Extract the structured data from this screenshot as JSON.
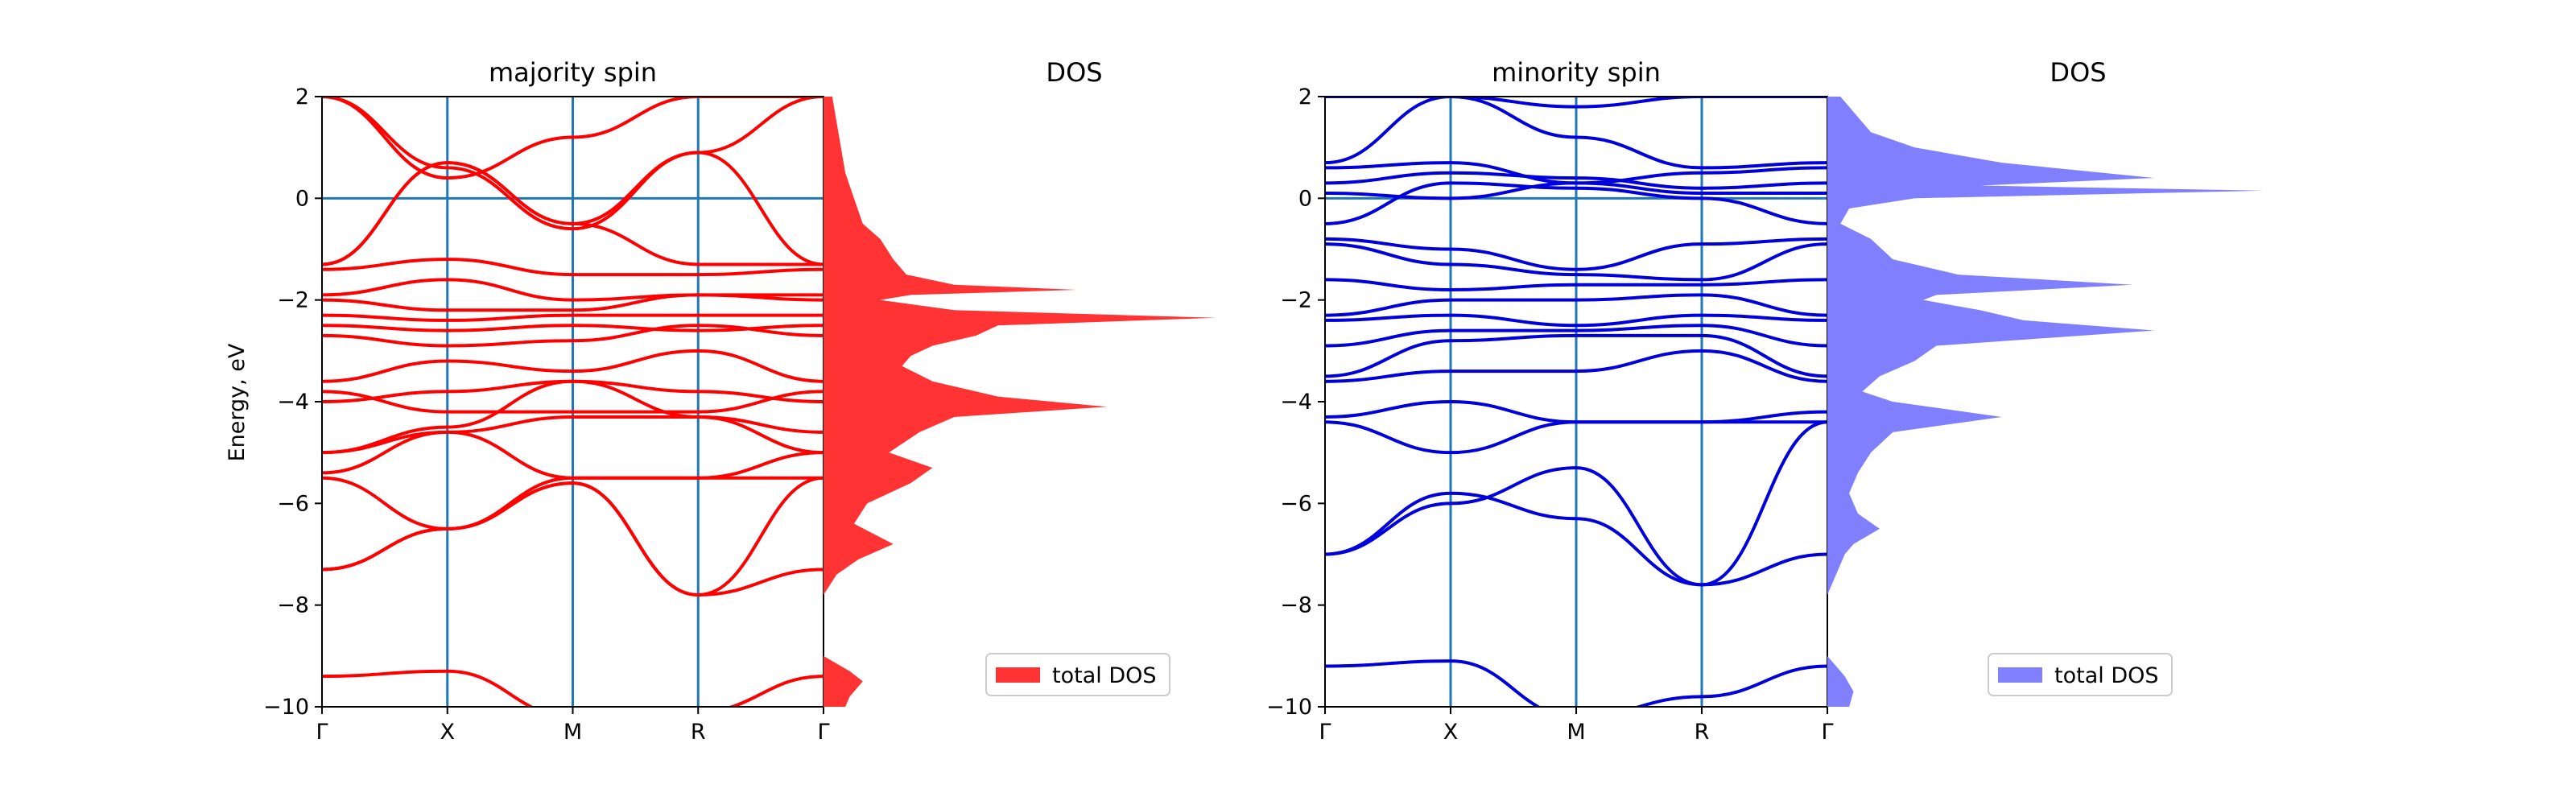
{
  "figure": {
    "ylabel": "Energy, eV",
    "colors": {
      "majority": "#ff0000",
      "majority_dos": "#ff3333",
      "minority": "#0000dd",
      "minority_dos": "#8080ff",
      "kpath_line": "#1f77b4"
    }
  },
  "chart_data": [
    {
      "type": "line",
      "title": "majority spin",
      "ylabel": "Energy, eV",
      "ylim": [
        -10,
        2
      ],
      "xticks": [
        "Γ",
        "X",
        "M",
        "R",
        "Γ"
      ],
      "yticks": [
        2,
        0,
        -2,
        -4,
        -6,
        -8,
        -10
      ],
      "fermi_level": 0,
      "bands": [
        {
          "y": [
            -9.4,
            -9.3,
            -10.2,
            -10.1,
            -9.4
          ]
        },
        {
          "y": [
            -7.3,
            -6.5,
            -5.6,
            -7.8,
            -7.3
          ]
        },
        {
          "y": [
            -7.3,
            -6.5,
            -5.6,
            -7.8,
            -5.5
          ]
        },
        {
          "y": [
            -5.5,
            -6.5,
            -5.5,
            -5.5,
            -5.5
          ]
        },
        {
          "y": [
            -5.4,
            -4.6,
            -5.5,
            -5.5,
            -5.0
          ]
        },
        {
          "y": [
            -5.0,
            -4.6,
            -4.3,
            -4.3,
            -4.6
          ]
        },
        {
          "y": [
            -5.0,
            -4.5,
            -3.6,
            -4.3,
            -5.0
          ]
        },
        {
          "y": [
            -4.0,
            -3.8,
            -3.6,
            -3.8,
            -4.0
          ]
        },
        {
          "y": [
            -3.8,
            -4.2,
            -4.2,
            -4.2,
            -3.8
          ]
        },
        {
          "y": [
            -3.6,
            -3.2,
            -3.4,
            -3.0,
            -3.6
          ]
        },
        {
          "y": [
            -2.7,
            -2.9,
            -2.8,
            -2.5,
            -2.7
          ]
        },
        {
          "y": [
            -2.5,
            -2.6,
            -2.5,
            -2.6,
            -2.5
          ]
        },
        {
          "y": [
            -2.3,
            -2.4,
            -2.3,
            -2.3,
            -2.3
          ]
        },
        {
          "y": [
            -2.0,
            -2.2,
            -2.2,
            -1.9,
            -2.0
          ]
        },
        {
          "y": [
            -1.9,
            -1.6,
            -2.0,
            -1.9,
            -1.9
          ]
        },
        {
          "y": [
            -1.4,
            -1.2,
            -1.5,
            -1.5,
            -1.4
          ]
        },
        {
          "y": [
            -1.3,
            0.7,
            -0.5,
            -1.3,
            -1.3
          ]
        },
        {
          "y": [
            -1.3,
            0.7,
            -0.5,
            0.9,
            -1.3
          ]
        },
        {
          "y": [
            2.0,
            0.6,
            -0.6,
            0.9,
            2.0
          ]
        },
        {
          "y": [
            2.0,
            0.4,
            1.2,
            2.0,
            2.0
          ]
        }
      ],
      "dos": {
        "label": "total DOS",
        "energy": [
          2.0,
          1.5,
          1.0,
          0.5,
          0.0,
          -0.5,
          -0.8,
          -1.2,
          -1.5,
          -1.7,
          -1.8,
          -1.9,
          -2.0,
          -2.2,
          -2.35,
          -2.5,
          -2.7,
          -2.9,
          -3.1,
          -3.3,
          -3.6,
          -3.9,
          -4.1,
          -4.3,
          -4.6,
          -5.0,
          -5.3,
          -5.6,
          -6.0,
          -6.4,
          -6.8,
          -7.1,
          -7.4,
          -7.8,
          -8.2,
          -8.6,
          -9.0,
          -9.3,
          -9.5,
          -9.8,
          -10.0
        ],
        "values": [
          0.2,
          0.3,
          0.4,
          0.5,
          0.7,
          0.9,
          1.3,
          1.6,
          1.9,
          3.0,
          5.8,
          2.0,
          1.3,
          3.0,
          9.0,
          4.0,
          3.5,
          2.5,
          2.0,
          1.8,
          2.5,
          4.0,
          6.5,
          3.0,
          2.2,
          1.5,
          2.5,
          2.0,
          1.0,
          0.7,
          1.6,
          0.8,
          0.3,
          0.0,
          0.0,
          0.0,
          0.0,
          0.6,
          0.9,
          0.6,
          0.5
        ]
      }
    },
    {
      "type": "line",
      "title": "minority spin",
      "ylabel": "",
      "ylim": [
        -10,
        2
      ],
      "xticks": [
        "Γ",
        "X",
        "M",
        "R",
        "Γ"
      ],
      "yticks": [
        2,
        0,
        -2,
        -4,
        -6,
        -8,
        -10
      ],
      "fermi_level": 0,
      "bands": [
        {
          "y": [
            -9.2,
            -9.1,
            -10.2,
            -9.8,
            -9.2
          ]
        },
        {
          "y": [
            -7.0,
            -5.8,
            -6.3,
            -7.6,
            -7.0
          ]
        },
        {
          "y": [
            -7.0,
            -6.0,
            -5.3,
            -7.6,
            -4.4
          ]
        },
        {
          "y": [
            -4.4,
            -5.0,
            -4.4,
            -4.4,
            -4.4
          ]
        },
        {
          "y": [
            -4.3,
            -4.0,
            -4.4,
            -4.4,
            -4.2
          ]
        },
        {
          "y": [
            -3.6,
            -3.4,
            -3.4,
            -3.0,
            -3.6
          ]
        },
        {
          "y": [
            -3.5,
            -2.8,
            -2.7,
            -2.7,
            -3.5
          ]
        },
        {
          "y": [
            -2.9,
            -2.6,
            -2.6,
            -2.5,
            -2.9
          ]
        },
        {
          "y": [
            -2.4,
            -2.3,
            -2.5,
            -2.3,
            -2.4
          ]
        },
        {
          "y": [
            -2.3,
            -2.0,
            -2.0,
            -1.9,
            -2.3
          ]
        },
        {
          "y": [
            -1.6,
            -1.8,
            -1.7,
            -1.7,
            -1.6
          ]
        },
        {
          "y": [
            -0.9,
            -1.3,
            -1.5,
            -1.6,
            -0.9
          ]
        },
        {
          "y": [
            -0.8,
            -1.0,
            -1.4,
            -0.9,
            -0.8
          ]
        },
        {
          "y": [
            -0.5,
            0.3,
            0.2,
            0.0,
            -0.5
          ]
        },
        {
          "y": [
            0.1,
            0.0,
            0.3,
            0.1,
            0.1
          ]
        },
        {
          "y": [
            0.3,
            0.5,
            0.4,
            0.2,
            0.3
          ]
        },
        {
          "y": [
            0.6,
            0.7,
            0.3,
            0.5,
            0.6
          ]
        },
        {
          "y": [
            0.7,
            2.0,
            1.2,
            0.6,
            0.7
          ]
        },
        {
          "y": [
            2.0,
            2.0,
            1.8,
            2.0,
            2.0
          ]
        }
      ],
      "dos": {
        "label": "total DOS",
        "energy": [
          2.0,
          1.7,
          1.3,
          1.0,
          0.7,
          0.4,
          0.25,
          0.15,
          0.0,
          -0.2,
          -0.5,
          -0.8,
          -1.2,
          -1.5,
          -1.7,
          -1.9,
          -2.0,
          -2.2,
          -2.4,
          -2.6,
          -2.9,
          -3.2,
          -3.5,
          -3.8,
          -4.0,
          -4.3,
          -4.6,
          -5.0,
          -5.4,
          -5.8,
          -6.2,
          -6.5,
          -6.8,
          -7.0,
          -7.4,
          -7.8,
          -8.2,
          -8.6,
          -9.0,
          -9.4,
          -9.7,
          -10.0
        ],
        "values": [
          0.3,
          0.6,
          1.0,
          2.0,
          4.0,
          7.5,
          3.5,
          10.0,
          2.0,
          0.5,
          0.3,
          1.0,
          1.5,
          3.0,
          7.0,
          2.5,
          2.2,
          3.5,
          4.5,
          7.5,
          2.5,
          2.0,
          1.2,
          0.8,
          1.5,
          4.0,
          1.5,
          1.0,
          0.7,
          0.5,
          0.7,
          1.2,
          0.6,
          0.4,
          0.2,
          0.0,
          0.0,
          0.0,
          0.0,
          0.4,
          0.6,
          0.5
        ]
      }
    }
  ]
}
